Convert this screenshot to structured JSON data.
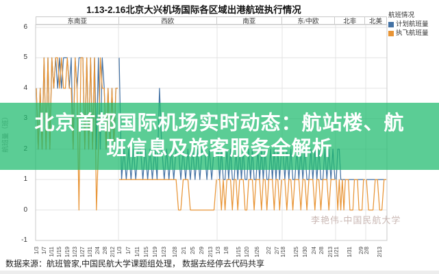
{
  "page": {
    "title": "1.13-2.16北京大兴机场国际各区域出港航班执行情况",
    "source_note": "数据来源：航班管家,中国民航大学课题组处理， 数据去经停去代码共享",
    "watermark": "李艳伟-中国民航大学"
  },
  "overlay": {
    "line1": "北京首都国际机场实时动态：航站楼、航",
    "line2": "班信息及旅客服务全解析"
  },
  "legend": {
    "title": "航班情况",
    "items": [
      {
        "label": "计划航班量",
        "color": "#4472A4"
      },
      {
        "label": "执飞航班量",
        "color": "#E89435"
      }
    ]
  },
  "y_axis": {
    "title": "航班量（班）"
  },
  "colors": {
    "planned": "#4472A4",
    "executed": "#E89435",
    "banner": "rgba(28,186,108,0.72)",
    "grid": "#E3E3E3",
    "border": "#C9C9C9",
    "watermark": "#C9B7B3"
  },
  "chart_data": {
    "type": "line",
    "title": "1.13-2.16北京大兴机场国际各区域出港航班执行情况",
    "xlabel": "",
    "ylabel": "航班量（班）",
    "ylim": [
      -1,
      6
    ],
    "y_ticks": [
      6,
      5,
      4,
      3,
      2,
      1,
      0,
      -1
    ],
    "grid": true,
    "legend_position": "top-right",
    "series_names": [
      "计划航班量",
      "执飞航班量"
    ],
    "panels": [
      {
        "region": "东南亚",
        "ticks": [
          "1/3",
          "1/7",
          "1/11",
          "1/15",
          "1/19",
          "1/23",
          "1/27",
          "1/31",
          "2/4",
          "2/8",
          "2/12"
        ],
        "planned": [
          4,
          2,
          4,
          2,
          5,
          2,
          5,
          2,
          5,
          4,
          5,
          4,
          5,
          4,
          5,
          5,
          5,
          4,
          5,
          2,
          5,
          4,
          5,
          5,
          5,
          2,
          5,
          2,
          5,
          2,
          5,
          2,
          5,
          2,
          5,
          4,
          2,
          4,
          2,
          4,
          2,
          4,
          4
        ],
        "executed": [
          4,
          2,
          4,
          2,
          5,
          2,
          5,
          2,
          5,
          4,
          5,
          5,
          4,
          5,
          4,
          4,
          5,
          4,
          4,
          2,
          5,
          4,
          0,
          5,
          5,
          2,
          5,
          2,
          5,
          2,
          5,
          0,
          2,
          5,
          4,
          4,
          2,
          4,
          2,
          4,
          2,
          4,
          4
        ]
      },
      {
        "region": "西欧",
        "ticks": [
          "1/3",
          "1/7",
          "1/11",
          "1/15",
          "1/19",
          "1/23",
          "1/28",
          "2/1",
          "2/5",
          "2/9",
          "2/13"
        ],
        "planned": [
          5,
          1,
          2,
          1,
          2,
          1,
          2,
          1,
          2,
          2,
          1,
          2,
          1,
          2,
          1,
          2,
          1,
          4,
          2,
          1,
          2,
          1,
          2,
          1,
          2,
          2,
          1,
          2,
          1,
          2,
          1,
          2,
          1,
          2,
          1,
          2,
          2,
          1,
          2,
          1,
          2,
          2
        ],
        "executed": [
          1,
          1,
          1,
          1,
          1,
          1,
          1,
          1,
          1,
          1,
          1,
          1,
          1,
          1,
          1,
          1,
          1,
          1,
          1,
          1,
          1,
          1,
          1,
          1,
          1,
          0,
          0,
          1,
          1,
          1,
          0,
          0,
          0,
          0,
          0,
          0,
          0,
          0,
          0,
          0,
          0,
          1
        ]
      },
      {
        "region": "南亚",
        "ticks": [
          "1/3",
          "1/8",
          "1/15",
          "1/20",
          "1/26",
          "2/2",
          "2/7"
        ],
        "planned": [
          2,
          1,
          2,
          1,
          1,
          2,
          1,
          2,
          1,
          1,
          2,
          1,
          2,
          1,
          2,
          1,
          1,
          2,
          1,
          2,
          1,
          1,
          2,
          1,
          2,
          1,
          2,
          1,
          1,
          2,
          1,
          2,
          1,
          2,
          1,
          2
        ],
        "executed": [
          1,
          1,
          0,
          1,
          0,
          1,
          1,
          1,
          0,
          1,
          1,
          0,
          1,
          1,
          1,
          0,
          0,
          1,
          1,
          1,
          0,
          1,
          1,
          1,
          0,
          1,
          1,
          0,
          1,
          1,
          1,
          0,
          1,
          1,
          0,
          1
        ]
      },
      {
        "region": "东/中欧",
        "ticks": [
          "1/18",
          "1/25",
          "1/30",
          "2/4",
          "2/8",
          "2/13"
        ],
        "planned": [
          2,
          1,
          2,
          1,
          2,
          1,
          1,
          2,
          1,
          2,
          1,
          2,
          1,
          1,
          2,
          1,
          2,
          1,
          2,
          1,
          1,
          2,
          1,
          2,
          1,
          2,
          1
        ],
        "executed": [
          1,
          1,
          0,
          1,
          1,
          0,
          1,
          1,
          1,
          0,
          1,
          1,
          0,
          1,
          1,
          1,
          0,
          1,
          1,
          0,
          1,
          1,
          1,
          0,
          1,
          1,
          1
        ]
      },
      {
        "region": "北非",
        "ticks": [
          "1/21",
          "1/31",
          "2/9"
        ],
        "planned": [
          1,
          2,
          2,
          1,
          1,
          1,
          1,
          1,
          1,
          1,
          1,
          1,
          1,
          1,
          1,
          1,
          1,
          1,
          1,
          1
        ],
        "executed": [
          1,
          0,
          1,
          0,
          1,
          0,
          1,
          1,
          1,
          0,
          0,
          0,
          1,
          1,
          1,
          0,
          0,
          0,
          1,
          1
        ]
      },
      {
        "region": "北美",
        "ticks": [
          "2/8",
          "2/13"
        ],
        "planned": [
          1,
          1,
          1,
          1,
          1,
          1,
          1,
          1,
          1,
          1
        ],
        "executed": [
          1,
          0,
          0,
          0,
          1,
          1,
          0,
          0,
          1,
          1
        ]
      }
    ]
  }
}
